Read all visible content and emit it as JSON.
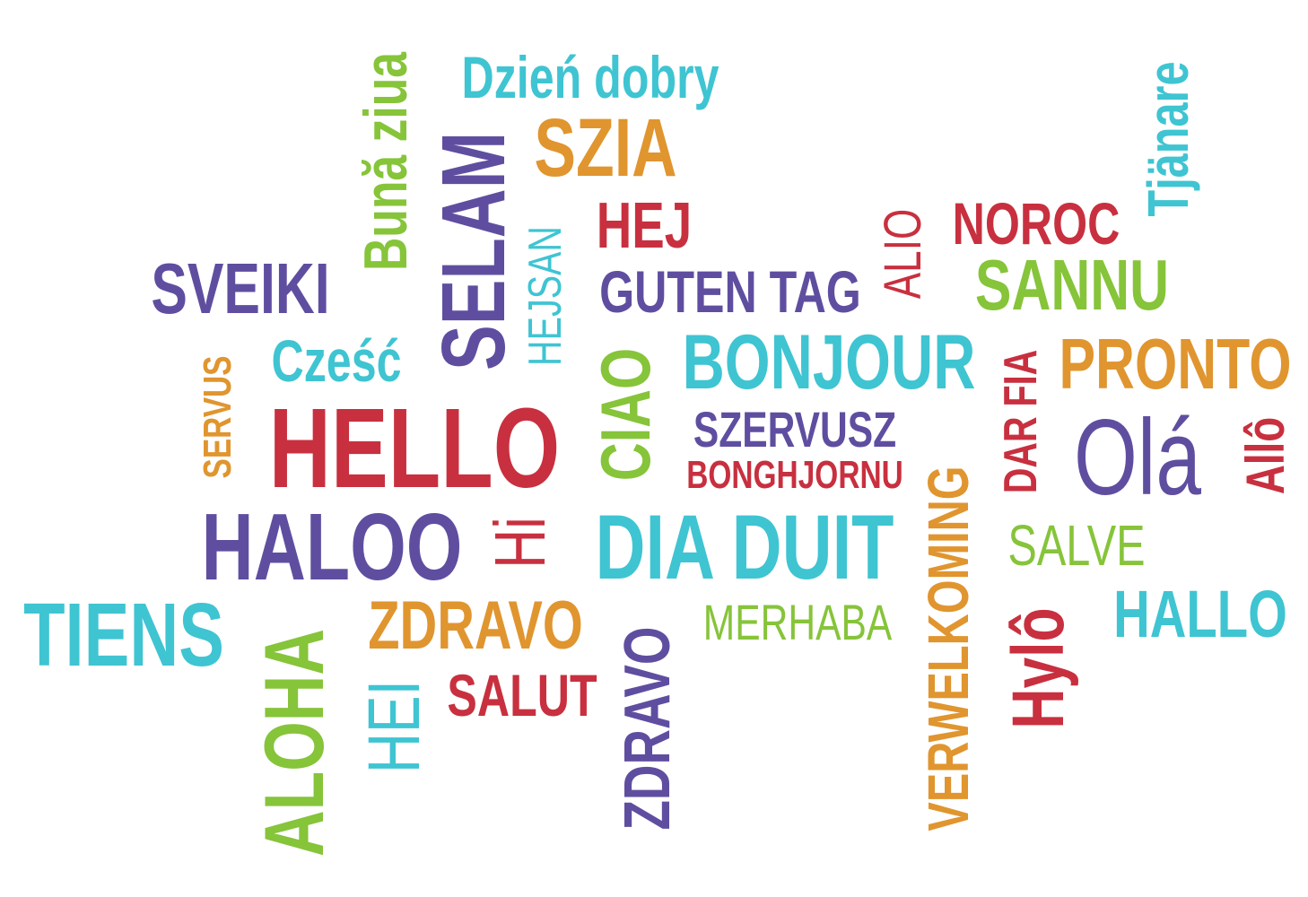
{
  "words": {
    "dzien_dobry": "Dzień dobry",
    "szia": "SZIA",
    "buna_ziua": "Bună ziua",
    "selam": "SELAM",
    "hejsan": "HEJSAN",
    "hej": "HEJ",
    "guten_tag": "GUTEN TAG",
    "alio": "ALIO",
    "noroc": "NOROC",
    "sannu": "SANNU",
    "tjanare": "Tjänare",
    "sveiki": "SVEIKI",
    "czesc": "Cześć",
    "servus": "SERVUS",
    "ciao": "CIAO",
    "bonjour": "BONJOUR",
    "dar_fia": "DAR FIA",
    "pronto": "PRONTO",
    "hello": "HELLO",
    "szervusz": "SZERVUSZ",
    "bonghjornu": "BONGHJORNU",
    "ola": "Olá",
    "allo": "Allô",
    "verwelkoming": "VERWELKOMING",
    "haloo": "HALOO",
    "hi": "Hi",
    "dia_duit": "DIA DUIT",
    "salve": "SALVE",
    "tiens": "TIENS",
    "aloha": "ALOHA",
    "zdravo_h": "ZDRAVO",
    "zdravo_v": "ZDRAVO",
    "merhaba": "MERHABA",
    "hylo": "Hylô",
    "hallo": "HALLO",
    "hei": "HEI",
    "salut": "SALUT"
  },
  "colors": {
    "purple": "#5f4ea0",
    "red": "#c8303f",
    "cyan": "#3fc4d2",
    "orange": "#e0952f",
    "green": "#86c43a"
  }
}
